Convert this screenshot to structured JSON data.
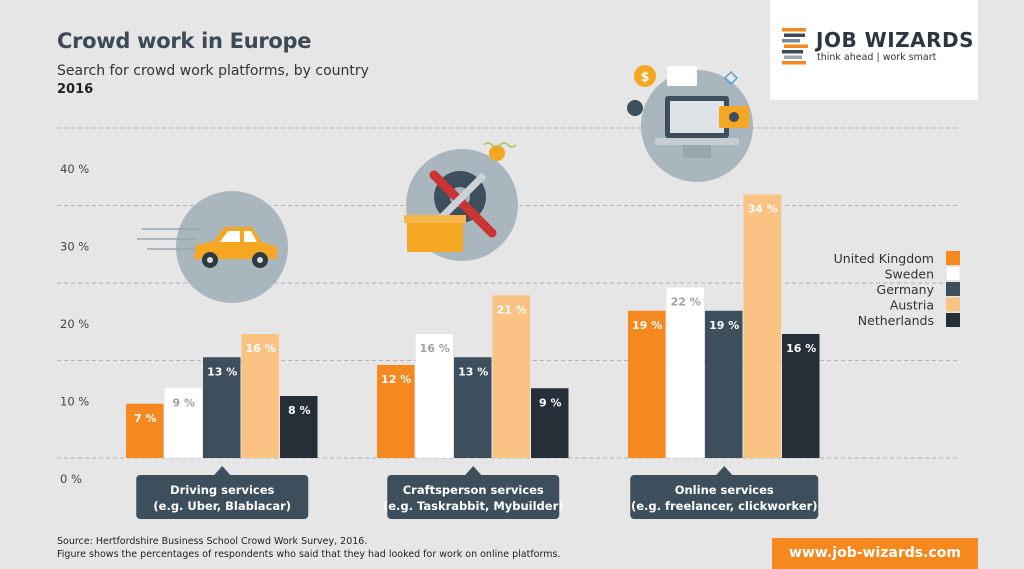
{
  "header": {
    "title": "Crowd work in Europe",
    "subtitle": "Search for crowd work platforms, by country",
    "year": "2016"
  },
  "logo": {
    "name": "JOB WIZARDS",
    "tagline": "think ahead | work smart",
    "stripe_colors": [
      "#f5891f",
      "#3d4a55",
      "#7a8a96",
      "#f5891f",
      "#3d4a55",
      "#9aa7b0",
      "#f5891f"
    ]
  },
  "footer": {
    "source_line1": "Source: Hertfordshire Business School Crowd Work Survey, 2016.",
    "source_line2": "Figure shows the percentages of respondents who said that they had looked for work on online platforms.",
    "url": "www.job-wizards.com"
  },
  "chart_data": {
    "type": "bar",
    "title": "Crowd work in Europe",
    "ylim": [
      0,
      40
    ],
    "yticks": [
      0,
      10,
      20,
      30,
      40
    ],
    "ytick_labels": [
      "0 %",
      "10 %",
      "20 %",
      "30 %",
      "40 %"
    ],
    "grid": true,
    "legend_position": "right",
    "categories": [
      {
        "line1": "Driving services",
        "line2": "(e.g. Uber, Blablacar)",
        "icon": "car-icon"
      },
      {
        "line1": "Craftsperson services",
        "line2": "(e.g. Taskrabbit, Mybuilder)",
        "icon": "tools-icon"
      },
      {
        "line1": "Online services",
        "line2": "(e.g. freelancer, clickworker)",
        "icon": "laptop-icon"
      }
    ],
    "series": [
      {
        "name": "United Kingdom",
        "color": "#f5891f",
        "label_color": "#ffffff",
        "values": [
          7,
          12,
          19
        ],
        "labels": [
          "7 %",
          "12 %",
          "19 %"
        ]
      },
      {
        "name": "Sweden",
        "color": "#ffffff",
        "label_color": "#a0a0a0",
        "values": [
          9,
          16,
          22
        ],
        "labels": [
          "9 %",
          "16 %",
          "22 %"
        ]
      },
      {
        "name": "Germany",
        "color": "#3d4e5c",
        "label_color": "#ffffff",
        "values": [
          13,
          13,
          19
        ],
        "labels": [
          "13 %",
          "13 %",
          "19 %"
        ]
      },
      {
        "name": "Austria",
        "color": "#fbc383",
        "label_color": "#ffffff",
        "values": [
          16,
          21,
          34
        ],
        "labels": [
          "16 %",
          "21 %",
          "34 %"
        ]
      },
      {
        "name": "Netherlands",
        "color": "#262f38",
        "label_color": "#ffffff",
        "values": [
          8,
          9,
          16
        ],
        "labels": [
          "8 %",
          "9 %",
          "16 %"
        ]
      }
    ]
  }
}
